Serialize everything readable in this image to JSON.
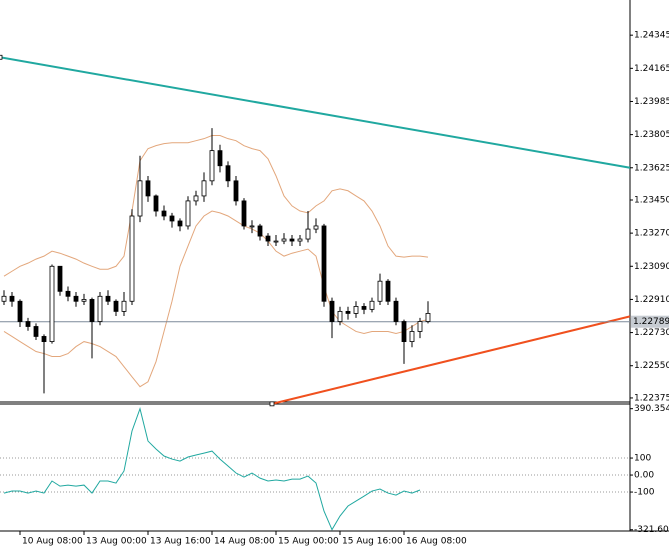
{
  "chart_data": {
    "type": "candlestick",
    "categories": [
      null,
      null,
      "10 Aug 08:00",
      null,
      null,
      null,
      null,
      null,
      null,
      null,
      "13 Aug 00:00",
      null,
      null,
      null,
      null,
      null,
      null,
      null,
      "13 Aug 16:00",
      null,
      null,
      null,
      null,
      null,
      null,
      null,
      "14 Aug 08:00",
      null,
      null,
      null,
      null,
      null,
      null,
      null,
      "15 Aug 00:00",
      null,
      null,
      null,
      null,
      null,
      null,
      null,
      "15 Aug 16:00",
      null,
      null,
      null,
      null,
      null,
      null,
      null,
      "16 Aug 08:00",
      null,
      null,
      null
    ],
    "open": [
      1.229,
      1.22927,
      1.229,
      1.2279,
      1.22763,
      1.22709,
      1.22681,
      1.2309,
      1.22954,
      1.22927,
      1.229,
      1.2291,
      1.2279,
      1.22927,
      1.229,
      1.22845,
      1.229,
      1.23363,
      1.23554,
      1.23472,
      1.2339,
      1.23363,
      1.23336,
      1.23309,
      1.23445,
      1.23472,
      1.23554,
      1.23718,
      1.23636,
      1.23554,
      1.23445,
      1.23309,
      1.23309,
      1.23254,
      1.23227,
      1.23227,
      1.23238,
      1.23227,
      1.23238,
      1.23292,
      1.23309,
      1.229,
      1.2279,
      1.22845,
      1.22834,
      1.22872,
      1.22856,
      1.229,
      1.23009,
      1.229,
      1.2279,
      1.22681,
      1.22736,
      1.2279
    ],
    "high": [
      1.2296,
      1.2295,
      1.2291,
      1.2281,
      1.2278,
      1.2272,
      1.231,
      1.2308,
      1.2298,
      1.2295,
      1.2294,
      1.2292,
      1.2295,
      1.2296,
      1.2291,
      1.2295,
      1.234,
      1.2369,
      1.2358,
      1.2348,
      1.2342,
      1.2338,
      1.2335,
      1.2347,
      1.235,
      1.236,
      1.2384,
      1.2375,
      1.2366,
      1.2358,
      1.2346,
      1.2334,
      1.2332,
      1.2327,
      1.2326,
      1.2327,
      1.2326,
      1.2326,
      1.2339,
      1.2335,
      1.2332,
      1.2292,
      1.2287,
      1.2287,
      1.229,
      1.2289,
      1.2292,
      1.2305,
      1.2302,
      1.2292,
      1.228,
      1.2277,
      1.2281,
      1.229
    ],
    "low": [
      1.2288,
      1.2287,
      1.2276,
      1.2274,
      1.2269,
      1.224,
      1.2267,
      1.2293,
      1.229,
      1.2287,
      1.2288,
      1.2259,
      1.2277,
      1.2288,
      1.2282,
      1.2282,
      1.2288,
      1.2333,
      1.2344,
      1.2336,
      1.2334,
      1.233,
      1.2328,
      1.2329,
      1.2342,
      1.2344,
      1.2353,
      1.236,
      1.2352,
      1.2342,
      1.2329,
      1.2327,
      1.2323,
      1.232,
      1.232,
      1.2321,
      1.232,
      1.232,
      1.2322,
      1.2327,
      1.2287,
      1.227,
      1.2277,
      1.228,
      1.2281,
      1.2283,
      1.2284,
      1.2288,
      1.2288,
      1.2277,
      1.2256,
      1.2265,
      1.227,
      1.2278
    ],
    "close": [
      1.22927,
      1.229,
      1.2279,
      1.22763,
      1.22709,
      1.22681,
      1.2309,
      1.22954,
      1.22927,
      1.229,
      1.2291,
      1.2279,
      1.22927,
      1.229,
      1.22845,
      1.229,
      1.23363,
      1.23554,
      1.23472,
      1.2339,
      1.23363,
      1.23336,
      1.23309,
      1.23445,
      1.23472,
      1.23554,
      1.23718,
      1.23636,
      1.23554,
      1.23445,
      1.23309,
      1.23309,
      1.23254,
      1.23227,
      1.23227,
      1.23238,
      1.23227,
      1.23238,
      1.23292,
      1.23309,
      1.229,
      1.2279,
      1.22845,
      1.22834,
      1.22872,
      1.22856,
      1.229,
      1.23009,
      1.229,
      1.2279,
      1.22681,
      1.22736,
      1.2279,
      1.22834
    ],
    "up_color": "#ffffff",
    "down_color": "#000000",
    "bands": [
      {
        "color": "#e3a77c",
        "values": [
          1.23036,
          1.23063,
          1.2309,
          1.23107,
          1.23129,
          1.23145,
          1.23172,
          1.23161,
          1.23145,
          1.23129,
          1.23107,
          1.2309,
          1.23074,
          1.23074,
          1.2309,
          1.23145,
          1.2339,
          1.23663,
          1.23729,
          1.23745,
          1.23756,
          1.23761,
          1.23761,
          1.23761,
          1.23772,
          1.23783,
          1.238,
          1.238,
          1.23783,
          1.23772,
          1.23745,
          1.23729,
          1.23718,
          1.23674,
          1.23581,
          1.23472,
          1.23418,
          1.2339,
          1.2338,
          1.23418,
          1.23445,
          1.235,
          1.2351,
          1.235,
          1.23472,
          1.23445,
          1.2339,
          1.23309,
          1.232,
          1.23145,
          1.2314,
          1.23145,
          1.23145,
          1.2314
        ]
      },
      {
        "color": "#e3a77c",
        "values": [
          1.22736,
          1.22709,
          1.22681,
          1.22654,
          1.22627,
          1.22616,
          1.226,
          1.226,
          1.22616,
          1.22654,
          1.22681,
          1.2267,
          1.22654,
          1.22627,
          1.226,
          1.22545,
          1.2249,
          1.22436,
          1.22463,
          1.22572,
          1.22736,
          1.229,
          1.2309,
          1.232,
          1.23309,
          1.23363,
          1.2339,
          1.2338,
          1.23363,
          1.23336,
          1.23309,
          1.23292,
          1.2327,
          1.23227,
          1.23172,
          1.23145,
          1.23161,
          1.23172,
          1.23183,
          1.23145,
          1.22981,
          1.22845,
          1.2279,
          1.22763,
          1.22736,
          1.22725,
          1.22736,
          1.22736,
          1.22736,
          1.22725,
          1.22736,
          1.22763,
          1.2279,
          1.22801
        ]
      }
    ],
    "trendlines": [
      {
        "color": "#20a8a0",
        "x": [
          -0.5,
          78.25
        ],
        "y": [
          1.24225,
          1.23625
        ]
      },
      {
        "color": "#f0501e",
        "x": [
          33.5,
          78.25
        ],
        "y": [
          1.22343,
          1.22818
        ]
      }
    ],
    "current_price": 1.22789,
    "ylim": [
      1.22353,
      1.24536
    ],
    "yticks": [
      1.24345,
      1.24165,
      1.23985,
      1.23805,
      1.23625,
      {
        "value": 1.2345,
        "label": "1.23450"
      },
      {
        "value": 1.2327,
        "label": "1.23270"
      },
      {
        "value": 1.2309,
        "label": "1.23090"
      },
      {
        "value": 1.2291,
        "label": "1.22910"
      },
      {
        "value": 1.2273,
        "label": "1.22730"
      },
      {
        "value": 1.2255,
        "label": "1.22550"
      },
      1.22375
    ],
    "indicator": {
      "color": "#20a8a0",
      "values": [
        -106,
        -94,
        -94,
        -106,
        -94,
        -106,
        -35,
        -65,
        -59,
        -65,
        -59,
        -106,
        -35,
        -35,
        -47,
        24,
        259,
        390,
        200,
        153,
        112,
        94,
        82,
        106,
        118,
        129,
        141,
        94,
        53,
        12,
        -12,
        12,
        -18,
        -35,
        -29,
        -35,
        -24,
        -24,
        -6,
        -47,
        -212,
        -321,
        -241,
        -182,
        -153,
        -124,
        -94,
        -82,
        -106,
        -118,
        -94,
        -106,
        -88,
        null
      ],
      "ylim": [
        -329,
        412
      ],
      "yticks": [
        390.354,
        100,
        {
          "value": 0,
          "label": "0.00"
        },
        -100,
        -321.607
      ],
      "levels": [
        100,
        0,
        -100
      ]
    }
  }
}
